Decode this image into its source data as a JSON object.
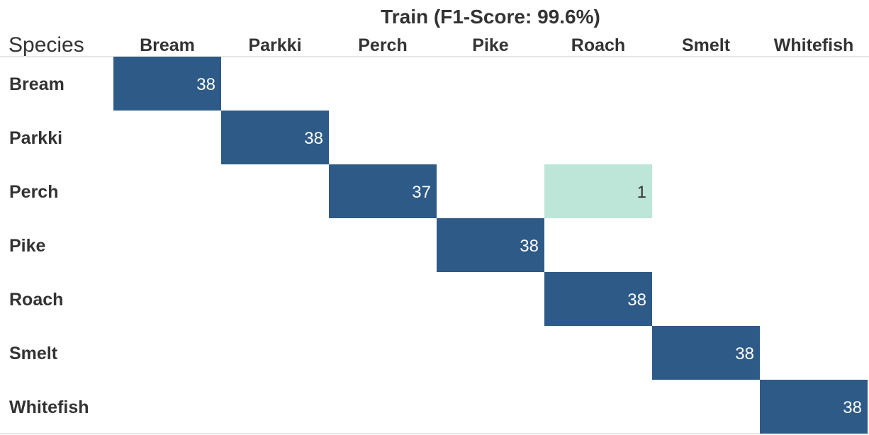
{
  "chart_data": {
    "type": "heatmap",
    "title": "Train (F1-Score: 99.6%)",
    "row_header": "Species",
    "columns": [
      "Bream",
      "Parkki",
      "Perch",
      "Pike",
      "Roach",
      "Smelt",
      "Whitefish"
    ],
    "rows": [
      "Bream",
      "Parkki",
      "Perch",
      "Pike",
      "Roach",
      "Smelt",
      "Whitefish"
    ],
    "cells": [
      {
        "row": "Bream",
        "col": "Bream",
        "value": 38
      },
      {
        "row": "Parkki",
        "col": "Parkki",
        "value": 38
      },
      {
        "row": "Perch",
        "col": "Perch",
        "value": 37
      },
      {
        "row": "Perch",
        "col": "Roach",
        "value": 1
      },
      {
        "row": "Pike",
        "col": "Pike",
        "value": 38
      },
      {
        "row": "Roach",
        "col": "Roach",
        "value": 38
      },
      {
        "row": "Smelt",
        "col": "Smelt",
        "value": 38
      },
      {
        "row": "Whitefish",
        "col": "Whitefish",
        "value": 38
      }
    ],
    "colors": {
      "high": "#2e5a87",
      "low": "#bde5d8",
      "text_on_high": "#ffffff",
      "text_on_low": "#333333",
      "rule": "#cccccc"
    }
  }
}
